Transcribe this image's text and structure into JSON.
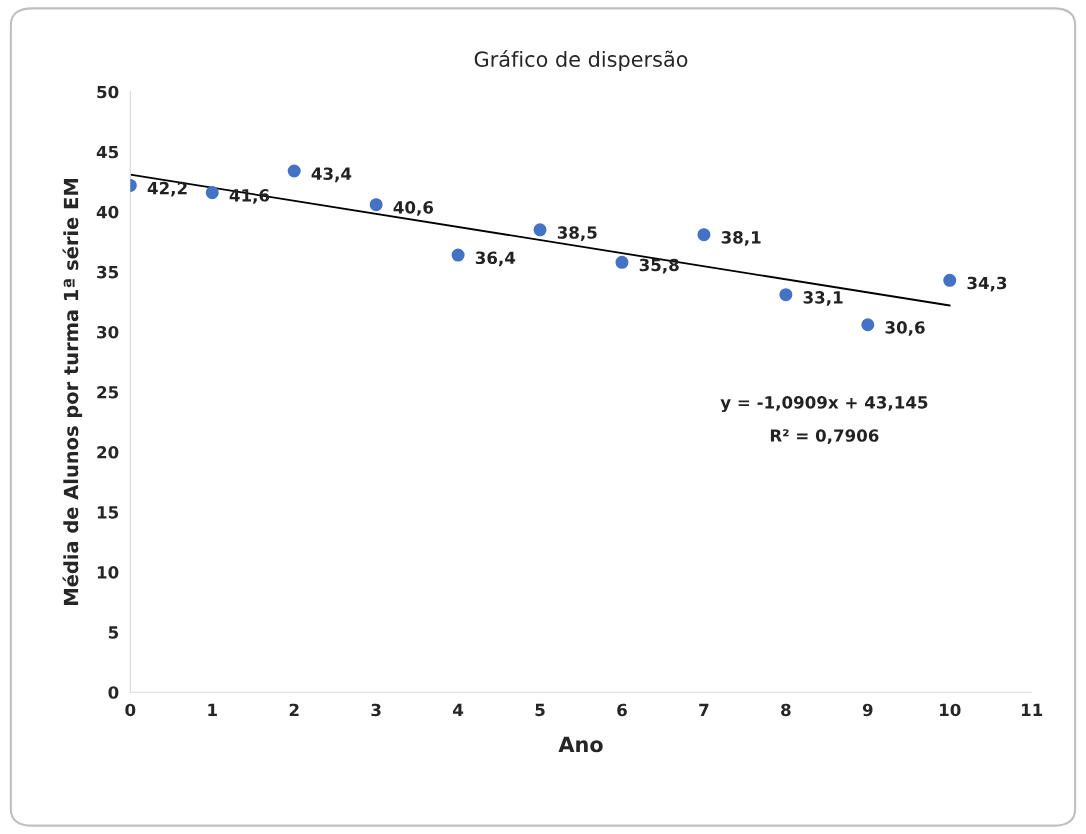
{
  "chart_data": {
    "type": "scatter",
    "title": "Gráfico de dispersão",
    "xlabel": "Ano",
    "ylabel": "Média de Alunos por turma 1ª série EM",
    "xlim": [
      0,
      11
    ],
    "ylim": [
      0,
      50
    ],
    "xticks": [
      0,
      1,
      2,
      3,
      4,
      5,
      6,
      7,
      8,
      9,
      10,
      11
    ],
    "yticks": [
      0,
      5,
      10,
      15,
      20,
      25,
      30,
      35,
      40,
      45,
      50
    ],
    "grid": false,
    "marker": "circle",
    "series": [
      {
        "color": "#4472c4",
        "x": [
          0,
          1,
          2,
          3,
          4,
          5,
          6,
          7,
          8,
          9,
          10
        ],
        "values": [
          42.2,
          41.6,
          43.4,
          40.6,
          36.4,
          38.5,
          35.8,
          38.1,
          33.1,
          30.6,
          34.3
        ],
        "value_labels": [
          "42,2",
          "41,6",
          "43,4",
          "40,6",
          "36,4",
          "38,5",
          "35,8",
          "38,1",
          "33,1",
          "30,6",
          "34,3"
        ]
      },
      {
        "type": "line",
        "color": "#000000",
        "x": [
          0,
          10
        ],
        "values": [
          43.1,
          32.2
        ],
        "line_style": "solid",
        "marker": "none"
      }
    ],
    "annotations": [
      "y = -1,0909x + 43,145",
      "R² = 0,7906"
    ]
  }
}
